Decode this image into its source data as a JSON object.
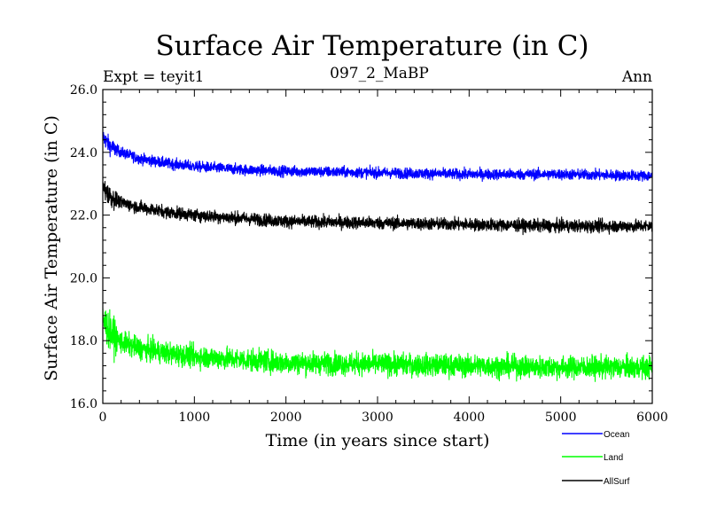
{
  "chart_data": {
    "type": "line",
    "title": "Surface Air Temperature (in C)",
    "subtitle_left": "Expt = teyit1",
    "subtitle_center": "097_2_MaBP",
    "subtitle_right": "Ann",
    "xlabel": "Time (in years since start)",
    "ylabel": "Surface Air Temperature (in C)",
    "xlim": [
      0,
      6000
    ],
    "ylim": [
      16.0,
      26.0
    ],
    "xticks": [
      0,
      1000,
      2000,
      3000,
      4000,
      5000,
      6000
    ],
    "xtick_labels": [
      "0",
      "1000",
      "2000",
      "3000",
      "4000",
      "5000",
      "6000"
    ],
    "yticks": [
      16.0,
      18.0,
      20.0,
      22.0,
      24.0,
      26.0
    ],
    "ytick_labels": [
      "16.0",
      "18.0",
      "20.0",
      "22.0",
      "24.0",
      "26.0"
    ],
    "series": [
      {
        "name": "Ocean",
        "color": "#0000ff",
        "trend_x": [
          0,
          50,
          100,
          200,
          400,
          700,
          1000,
          1500,
          2000,
          3000,
          4000,
          5000,
          6000
        ],
        "trend_y": [
          24.5,
          24.3,
          24.15,
          24.0,
          23.8,
          23.65,
          23.55,
          23.45,
          23.4,
          23.35,
          23.3,
          23.3,
          23.25
        ],
        "noise": 0.12
      },
      {
        "name": "Land",
        "color": "#00ff00",
        "trend_x": [
          0,
          50,
          100,
          200,
          400,
          700,
          1000,
          1500,
          2000,
          3000,
          4000,
          5000,
          6000
        ],
        "trend_y": [
          18.7,
          18.4,
          18.2,
          17.95,
          17.75,
          17.6,
          17.5,
          17.4,
          17.3,
          17.25,
          17.2,
          17.15,
          17.15
        ],
        "noise": 0.25
      },
      {
        "name": "AllSurf",
        "color": "#000000",
        "trend_x": [
          0,
          50,
          100,
          200,
          400,
          700,
          1000,
          1500,
          2000,
          3000,
          4000,
          5000,
          6000
        ],
        "trend_y": [
          22.9,
          22.7,
          22.55,
          22.4,
          22.25,
          22.1,
          22.0,
          21.9,
          21.8,
          21.75,
          21.7,
          21.65,
          21.65
        ],
        "noise": 0.14
      }
    ]
  }
}
